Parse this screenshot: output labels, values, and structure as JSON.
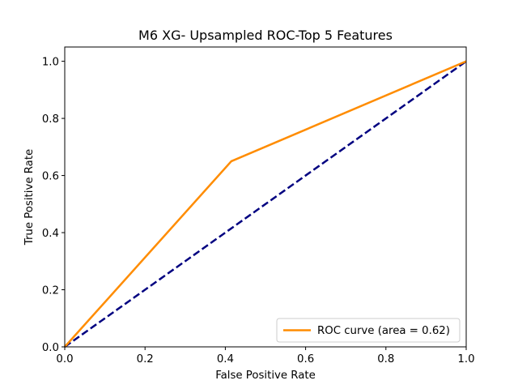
{
  "chart_data": {
    "type": "line",
    "title": "M6 XG- Upsampled ROC-Top 5 Features",
    "xlabel": "False Positive Rate",
    "ylabel": "True Positive Rate",
    "xlim": [
      0.0,
      1.0
    ],
    "ylim": [
      0.0,
      1.05
    ],
    "xticks": [
      "0.0",
      "0.2",
      "0.4",
      "0.6",
      "0.8",
      "1.0"
    ],
    "yticks": [
      "0.0",
      "0.2",
      "0.4",
      "0.6",
      "0.8",
      "1.0"
    ],
    "grid": false,
    "legend_position": "lower-right",
    "series": [
      {
        "name": "ROC curve (area = 0.62)",
        "color": "#ff8c00",
        "style": "solid",
        "x": [
          0.0,
          0.415,
          1.0
        ],
        "y": [
          0.0,
          0.65,
          1.0
        ]
      },
      {
        "name": "",
        "color": "#000080",
        "style": "dashed",
        "x": [
          0.0,
          1.0
        ],
        "y": [
          0.0,
          1.0
        ]
      }
    ]
  }
}
